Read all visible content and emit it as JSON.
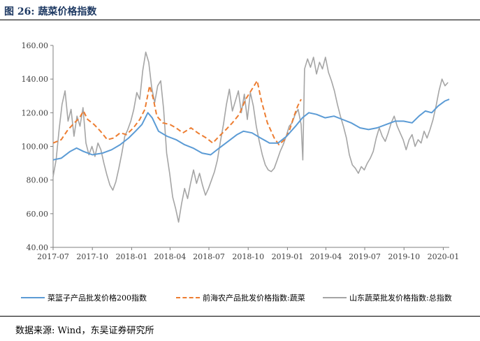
{
  "figure": {
    "title": "图 26:  蔬菜价格指数",
    "source": "数据来源:  Wind，东吴证券研究所"
  },
  "colors": {
    "series1": "#5b9bd5",
    "series2": "#ed7d31",
    "series3": "#a5a5a5",
    "title": "#1f3a63"
  },
  "chart_data": {
    "type": "line",
    "ylim": [
      40,
      160
    ],
    "yticks": [
      "40.00",
      "60.00",
      "80.00",
      "100.00",
      "120.00",
      "140.00",
      "160.00"
    ],
    "xlim": [
      "2017-07-01",
      "2020-01-15"
    ],
    "xticks": [
      "2017-07",
      "2017-10",
      "2018-01",
      "2018-04",
      "2018-07",
      "2018-10",
      "2019-01",
      "2019-04",
      "2019-07",
      "2019-10",
      "2020-01"
    ],
    "grid": false,
    "legend_position": "bottom",
    "series": [
      {
        "name": "菜篮子产品批发价格200指数",
        "color": "#5b9bd5",
        "points": [
          [
            "2017-07-01",
            92
          ],
          [
            "2017-07-20",
            93
          ],
          [
            "2017-08-10",
            97
          ],
          [
            "2017-08-25",
            99
          ],
          [
            "2017-09-10",
            97
          ],
          [
            "2017-10-01",
            95
          ],
          [
            "2017-10-25",
            96
          ],
          [
            "2017-11-15",
            98
          ],
          [
            "2017-12-05",
            101
          ],
          [
            "2017-12-25",
            105
          ],
          [
            "2018-01-10",
            109
          ],
          [
            "2018-01-25",
            113
          ],
          [
            "2018-02-08",
            120
          ],
          [
            "2018-02-18",
            117
          ],
          [
            "2018-03-05",
            109
          ],
          [
            "2018-03-25",
            106
          ],
          [
            "2018-04-15",
            104
          ],
          [
            "2018-05-05",
            101
          ],
          [
            "2018-05-25",
            99
          ],
          [
            "2018-06-15",
            96
          ],
          [
            "2018-07-05",
            95
          ],
          [
            "2018-07-25",
            99
          ],
          [
            "2018-08-15",
            103
          ],
          [
            "2018-09-05",
            107
          ],
          [
            "2018-09-20",
            109
          ],
          [
            "2018-10-10",
            108
          ],
          [
            "2018-10-30",
            105
          ],
          [
            "2018-11-20",
            102
          ],
          [
            "2018-12-10",
            102
          ],
          [
            "2018-12-30",
            106
          ],
          [
            "2019-01-20",
            112
          ],
          [
            "2019-02-05",
            117
          ],
          [
            "2019-02-20",
            120
          ],
          [
            "2019-03-10",
            119
          ],
          [
            "2019-03-30",
            117
          ],
          [
            "2019-04-20",
            118
          ],
          [
            "2019-05-10",
            116
          ],
          [
            "2019-05-30",
            114
          ],
          [
            "2019-06-20",
            111
          ],
          [
            "2019-07-10",
            110
          ],
          [
            "2019-07-30",
            111
          ],
          [
            "2019-08-20",
            113
          ],
          [
            "2019-09-10",
            115
          ],
          [
            "2019-09-30",
            115
          ],
          [
            "2019-10-20",
            114
          ],
          [
            "2019-11-05",
            118
          ],
          [
            "2019-11-20",
            121
          ],
          [
            "2019-12-05",
            120
          ],
          [
            "2019-12-20",
            124
          ],
          [
            "2020-01-05",
            127
          ],
          [
            "2020-01-15",
            128
          ]
        ]
      },
      {
        "name": "前海农产品批发价格指数:蔬菜",
        "color": "#ed7d31",
        "points": [
          [
            "2017-07-01",
            102
          ],
          [
            "2017-07-20",
            104
          ],
          [
            "2017-08-05",
            110
          ],
          [
            "2017-08-20",
            114
          ],
          [
            "2017-09-01",
            117
          ],
          [
            "2017-09-10",
            121
          ],
          [
            "2017-09-20",
            116
          ],
          [
            "2017-10-05",
            113
          ],
          [
            "2017-10-20",
            109
          ],
          [
            "2017-11-05",
            104
          ],
          [
            "2017-11-20",
            105
          ],
          [
            "2017-12-05",
            108
          ],
          [
            "2017-12-20",
            107
          ],
          [
            "2018-01-05",
            111
          ],
          [
            "2018-01-20",
            116
          ],
          [
            "2018-02-01",
            122
          ],
          [
            "2018-02-12",
            136
          ],
          [
            "2018-02-20",
            129
          ],
          [
            "2018-03-01",
            118
          ],
          [
            "2018-03-15",
            114
          ],
          [
            "2018-04-01",
            113
          ],
          [
            "2018-04-15",
            111
          ],
          [
            "2018-05-01",
            108
          ],
          [
            "2018-05-20",
            111
          ],
          [
            "2018-06-05",
            108
          ],
          [
            "2018-06-25",
            105
          ],
          [
            "2018-07-10",
            102
          ],
          [
            "2018-07-25",
            106
          ],
          [
            "2018-08-10",
            110
          ],
          [
            "2018-08-25",
            114
          ],
          [
            "2018-09-10",
            119
          ],
          [
            "2018-09-25",
            128
          ],
          [
            "2018-10-10",
            134
          ],
          [
            "2018-10-22",
            139
          ],
          [
            "2018-11-01",
            127
          ],
          [
            "2018-11-15",
            114
          ],
          [
            "2018-12-01",
            105
          ],
          [
            "2018-12-12",
            101
          ],
          [
            "2018-12-25",
            104
          ],
          [
            "2019-01-05",
            109
          ],
          [
            "2019-01-15",
            117
          ],
          [
            "2019-01-25",
            124
          ],
          [
            "2019-02-02",
            128
          ]
        ]
      },
      {
        "name": "山东蔬菜批发价格指数:总指数",
        "color": "#a5a5a5",
        "points": [
          [
            "2017-07-01",
            82
          ],
          [
            "2017-07-08",
            92
          ],
          [
            "2017-07-15",
            110
          ],
          [
            "2017-07-22",
            125
          ],
          [
            "2017-07-29",
            133
          ],
          [
            "2017-08-05",
            115
          ],
          [
            "2017-08-12",
            122
          ],
          [
            "2017-08-19",
            106
          ],
          [
            "2017-08-26",
            118
          ],
          [
            "2017-09-02",
            112
          ],
          [
            "2017-09-09",
            123
          ],
          [
            "2017-09-16",
            102
          ],
          [
            "2017-09-23",
            95
          ],
          [
            "2017-09-30",
            100
          ],
          [
            "2017-10-07",
            94
          ],
          [
            "2017-10-14",
            102
          ],
          [
            "2017-10-21",
            98
          ],
          [
            "2017-10-28",
            90
          ],
          [
            "2017-11-04",
            83
          ],
          [
            "2017-11-11",
            77
          ],
          [
            "2017-11-18",
            74
          ],
          [
            "2017-11-25",
            79
          ],
          [
            "2017-12-02",
            87
          ],
          [
            "2017-12-09",
            96
          ],
          [
            "2017-12-16",
            106
          ],
          [
            "2017-12-23",
            110
          ],
          [
            "2017-12-30",
            115
          ],
          [
            "2018-01-06",
            122
          ],
          [
            "2018-01-13",
            132
          ],
          [
            "2018-01-20",
            128
          ],
          [
            "2018-01-27",
            145
          ],
          [
            "2018-02-03",
            156
          ],
          [
            "2018-02-10",
            150
          ],
          [
            "2018-02-17",
            135
          ],
          [
            "2018-02-24",
            126
          ],
          [
            "2018-03-03",
            136
          ],
          [
            "2018-03-10",
            139
          ],
          [
            "2018-03-17",
            122
          ],
          [
            "2018-03-24",
            96
          ],
          [
            "2018-03-31",
            84
          ],
          [
            "2018-04-07",
            70
          ],
          [
            "2018-04-14",
            63
          ],
          [
            "2018-04-21",
            55
          ],
          [
            "2018-04-28",
            66
          ],
          [
            "2018-05-05",
            75
          ],
          [
            "2018-05-12",
            69
          ],
          [
            "2018-05-19",
            78
          ],
          [
            "2018-05-26",
            86
          ],
          [
            "2018-06-02",
            78
          ],
          [
            "2018-06-09",
            84
          ],
          [
            "2018-06-16",
            77
          ],
          [
            "2018-06-23",
            71
          ],
          [
            "2018-06-30",
            75
          ],
          [
            "2018-07-07",
            80
          ],
          [
            "2018-07-14",
            85
          ],
          [
            "2018-07-21",
            92
          ],
          [
            "2018-07-28",
            103
          ],
          [
            "2018-08-04",
            113
          ],
          [
            "2018-08-11",
            125
          ],
          [
            "2018-08-18",
            134
          ],
          [
            "2018-08-25",
            121
          ],
          [
            "2018-09-01",
            127
          ],
          [
            "2018-09-08",
            133
          ],
          [
            "2018-09-15",
            120
          ],
          [
            "2018-09-22",
            131
          ],
          [
            "2018-09-29",
            116
          ],
          [
            "2018-10-06",
            132
          ],
          [
            "2018-10-13",
            124
          ],
          [
            "2018-10-20",
            112
          ],
          [
            "2018-10-27",
            103
          ],
          [
            "2018-11-03",
            95
          ],
          [
            "2018-11-10",
            89
          ],
          [
            "2018-11-17",
            86
          ],
          [
            "2018-11-24",
            85
          ],
          [
            "2018-12-01",
            87
          ],
          [
            "2018-12-08",
            92
          ],
          [
            "2018-12-15",
            97
          ],
          [
            "2018-12-22",
            101
          ],
          [
            "2018-12-29",
            106
          ],
          [
            "2019-01-05",
            112
          ],
          [
            "2019-01-12",
            114
          ],
          [
            "2019-01-19",
            119
          ],
          [
            "2019-01-26",
            122
          ],
          [
            "2019-02-02",
            113
          ],
          [
            "2019-02-06",
            92
          ],
          [
            "2019-02-10",
            146
          ],
          [
            "2019-02-17",
            152
          ],
          [
            "2019-02-24",
            147
          ],
          [
            "2019-03-03",
            153
          ],
          [
            "2019-03-10",
            143
          ],
          [
            "2019-03-17",
            150
          ],
          [
            "2019-03-24",
            146
          ],
          [
            "2019-03-31",
            153
          ],
          [
            "2019-04-07",
            144
          ],
          [
            "2019-04-14",
            139
          ],
          [
            "2019-04-21",
            133
          ],
          [
            "2019-04-28",
            125
          ],
          [
            "2019-05-05",
            118
          ],
          [
            "2019-05-12",
            112
          ],
          [
            "2019-05-19",
            105
          ],
          [
            "2019-05-26",
            95
          ],
          [
            "2019-06-02",
            89
          ],
          [
            "2019-06-09",
            87
          ],
          [
            "2019-06-16",
            84
          ],
          [
            "2019-06-23",
            88
          ],
          [
            "2019-06-30",
            86
          ],
          [
            "2019-07-07",
            90
          ],
          [
            "2019-07-14",
            93
          ],
          [
            "2019-07-21",
            97
          ],
          [
            "2019-07-28",
            105
          ],
          [
            "2019-08-04",
            111
          ],
          [
            "2019-08-11",
            106
          ],
          [
            "2019-08-18",
            103
          ],
          [
            "2019-08-25",
            108
          ],
          [
            "2019-09-01",
            114
          ],
          [
            "2019-09-08",
            118
          ],
          [
            "2019-09-15",
            112
          ],
          [
            "2019-09-22",
            108
          ],
          [
            "2019-09-29",
            104
          ],
          [
            "2019-10-06",
            98
          ],
          [
            "2019-10-13",
            104
          ],
          [
            "2019-10-20",
            107
          ],
          [
            "2019-10-27",
            100
          ],
          [
            "2019-11-03",
            104
          ],
          [
            "2019-11-10",
            102
          ],
          [
            "2019-11-17",
            109
          ],
          [
            "2019-11-24",
            105
          ],
          [
            "2019-12-01",
            110
          ],
          [
            "2019-12-08",
            116
          ],
          [
            "2019-12-15",
            124
          ],
          [
            "2019-12-22",
            133
          ],
          [
            "2019-12-29",
            140
          ],
          [
            "2020-01-05",
            136
          ],
          [
            "2020-01-12",
            138
          ]
        ]
      }
    ]
  }
}
